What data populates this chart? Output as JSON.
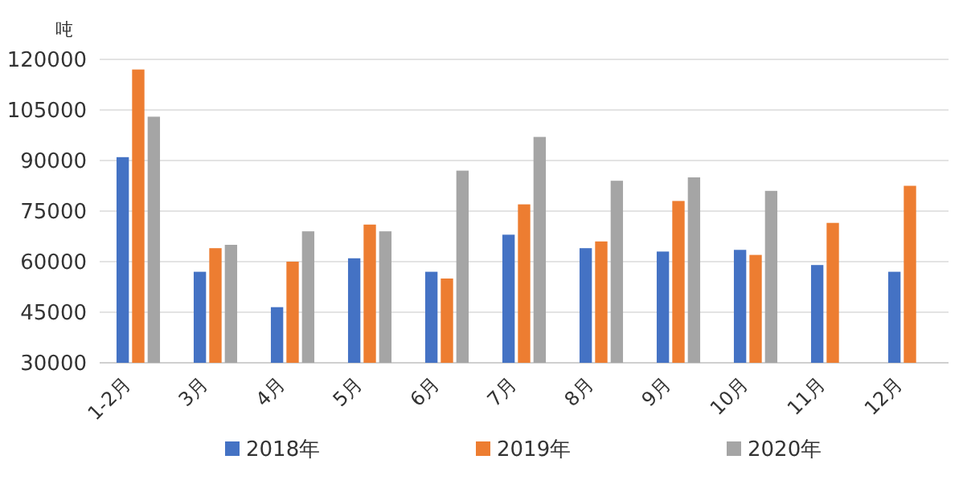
{
  "chart_data": {
    "type": "bar",
    "ylabel": "吨",
    "categories": [
      "1-2月",
      "3月",
      "4月",
      "5月",
      "6月",
      "7月",
      "8月",
      "9月",
      "10月",
      "11月",
      "12月"
    ],
    "series": [
      {
        "name": "2018年",
        "color": "#4472c4",
        "values": [
          91000,
          57000,
          46500,
          61000,
          57000,
          68000,
          64000,
          63000,
          63500,
          59000,
          57000
        ]
      },
      {
        "name": "2019年",
        "color": "#ed7d31",
        "values": [
          117000,
          64000,
          60000,
          71000,
          55000,
          77000,
          66000,
          78000,
          62000,
          71500,
          82500
        ]
      },
      {
        "name": "2020年",
        "color": "#a5a5a5",
        "values": [
          103000,
          65000,
          69000,
          69000,
          87000,
          97000,
          84000,
          85000,
          81000,
          null,
          null
        ]
      }
    ],
    "ylim": [
      30000,
      120000
    ],
    "yticks": [
      30000,
      45000,
      60000,
      75000,
      90000,
      105000,
      120000
    ],
    "grid": "y",
    "legend": "bottom"
  }
}
